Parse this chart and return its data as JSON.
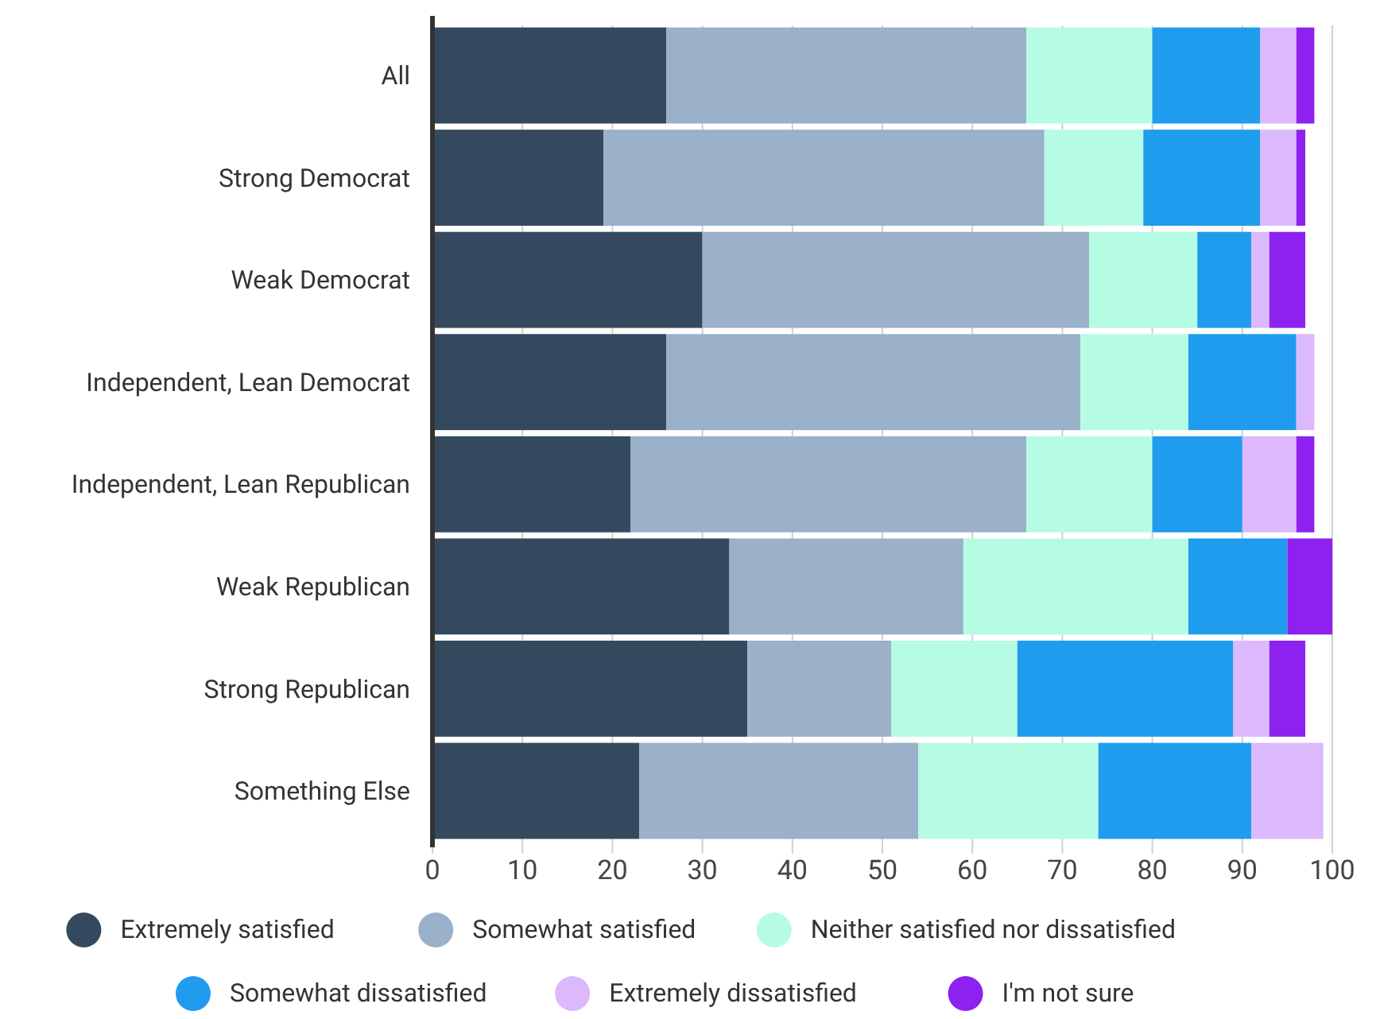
{
  "chart_data": {
    "type": "bar",
    "orientation": "horizontal",
    "stacked": true,
    "categories": [
      "All",
      "Strong Democrat",
      "Weak Democrat",
      "Independent, Lean Democrat",
      "Independent, Lean Republican",
      "Weak Republican",
      "Strong Republican",
      "Something Else"
    ],
    "series": [
      {
        "name": "Extremely satisfied",
        "color": "#34495e",
        "values": [
          26,
          19,
          30,
          26,
          22,
          33,
          35,
          23
        ]
      },
      {
        "name": "Somewhat satisfied",
        "color": "#9bb0c9",
        "values": [
          40,
          49,
          43,
          46,
          44,
          26,
          16,
          31
        ]
      },
      {
        "name": "Neither satisfied nor dissatisfied",
        "color": "#b6fce4",
        "values": [
          14,
          11,
          12,
          12,
          14,
          25,
          14,
          20
        ]
      },
      {
        "name": "Somewhat dissatisfied",
        "color": "#209cee",
        "values": [
          12,
          13,
          6,
          12,
          10,
          11,
          24,
          17
        ]
      },
      {
        "name": "Extremely dissatisfied",
        "color": "#dcb8fd",
        "values": [
          4,
          4,
          2,
          2,
          6,
          0,
          4,
          8
        ]
      },
      {
        "name": "I'm not sure",
        "color": "#8d21ef",
        "values": [
          2,
          1,
          4,
          0,
          2,
          5,
          4,
          0
        ]
      }
    ],
    "xlim": [
      0,
      100
    ],
    "xticks": [
      0,
      10,
      20,
      30,
      40,
      50,
      60,
      70,
      80,
      90,
      100
    ],
    "grid": "x",
    "legend": "bottom"
  }
}
